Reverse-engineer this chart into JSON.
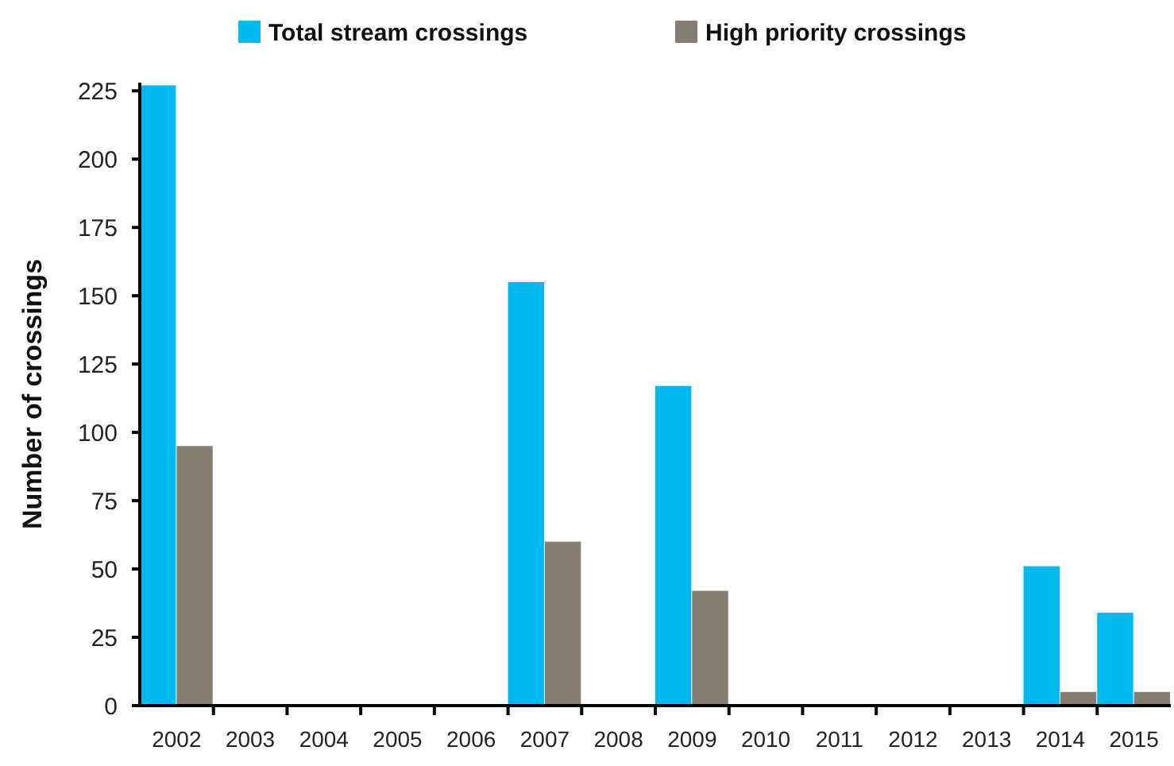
{
  "chart_data": {
    "type": "bar",
    "ylabel": "Number of crossings",
    "categories": [
      "2002",
      "2003",
      "2004",
      "2005",
      "2006",
      "2007",
      "2008",
      "2009",
      "2010",
      "2011",
      "2012",
      "2013",
      "2014",
      "2015"
    ],
    "series": [
      {
        "name": "Total stream crossings",
        "color": "#00b9ef",
        "values": [
          227,
          0,
          0,
          0,
          0,
          155,
          0,
          117,
          0,
          0,
          0,
          0,
          51,
          34
        ]
      },
      {
        "name": "High priority crossings",
        "color": "#857d70",
        "values": [
          95,
          0,
          0,
          0,
          0,
          60,
          0,
          42,
          0,
          0,
          0,
          0,
          5,
          5
        ]
      }
    ],
    "ylim": [
      0,
      228
    ],
    "yticks": [
      0,
      25,
      50,
      75,
      100,
      125,
      150,
      175,
      200,
      225
    ],
    "grid": false,
    "legend": "top"
  }
}
